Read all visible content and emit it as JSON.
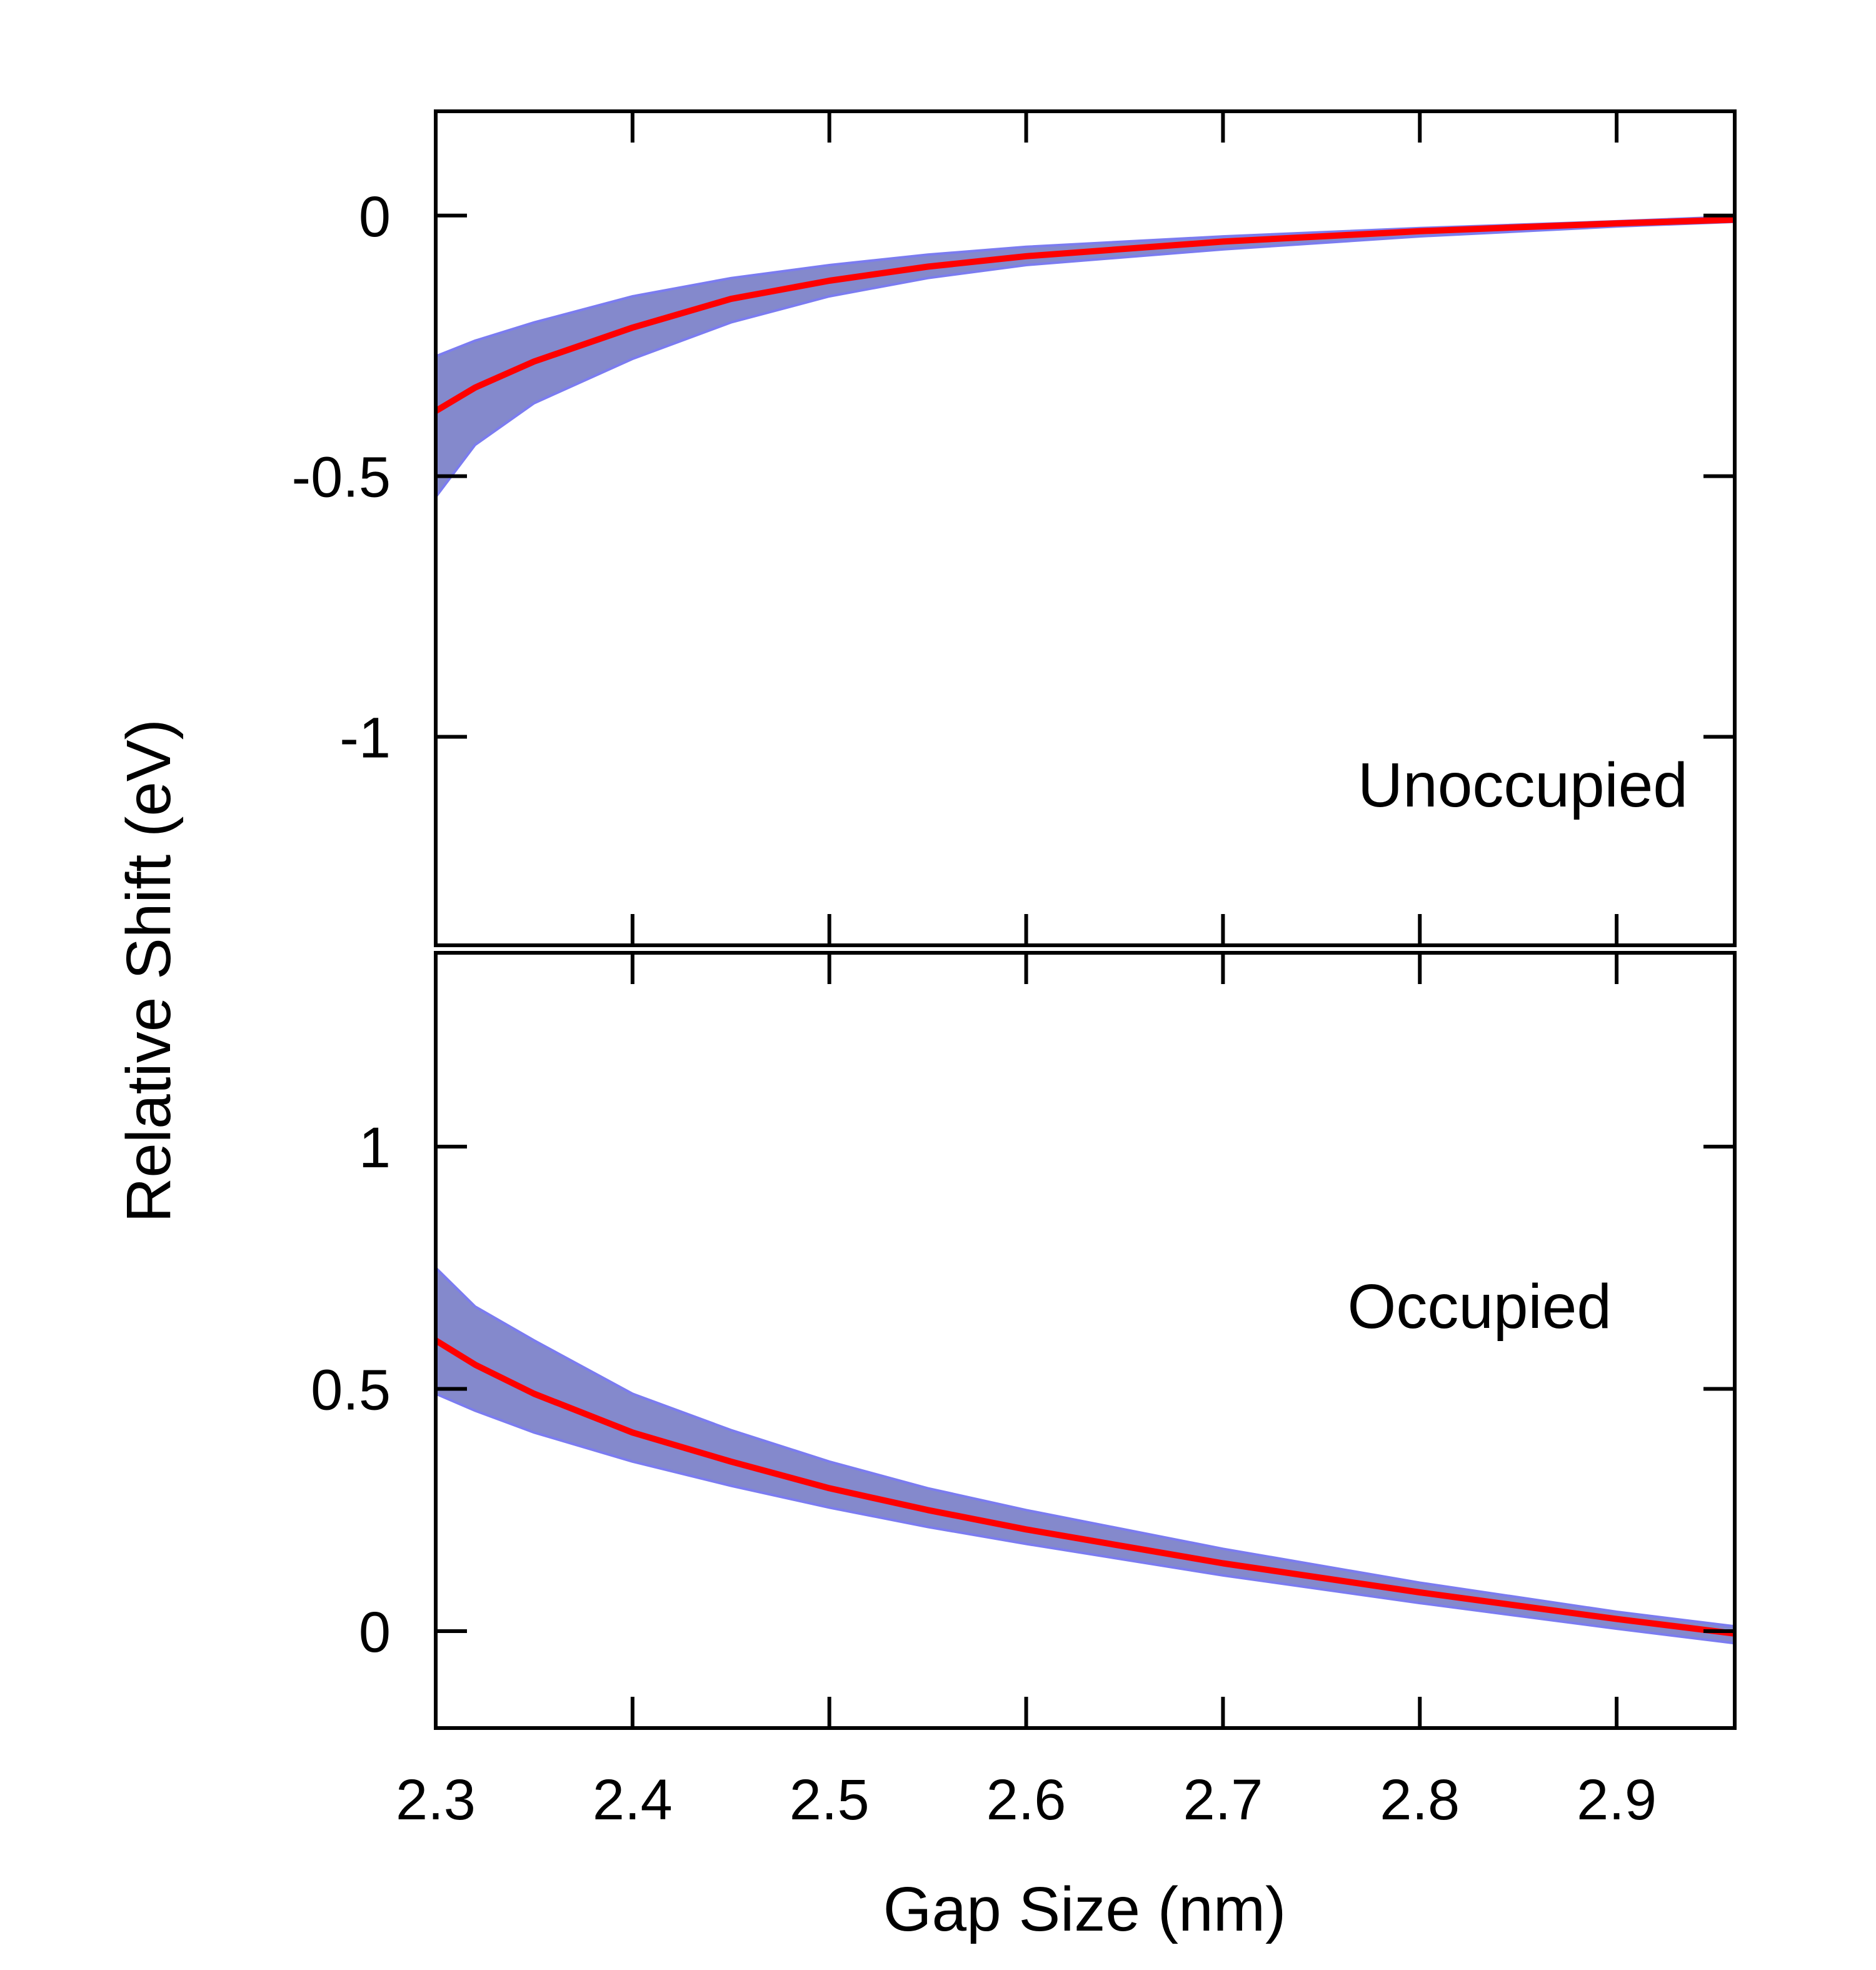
{
  "chart_data": {
    "type": "area",
    "xlabel": "Gap Size (nm)",
    "ylabel": "Relative Shift (eV)",
    "xlim": [
      2.3,
      2.96
    ],
    "x_ticks": [
      "2.3",
      "2.4",
      "2.5",
      "2.6",
      "2.7",
      "2.8",
      "2.9"
    ],
    "grid": false,
    "colors": {
      "line": "#ff0000",
      "band": "#8489cc",
      "band_edge": "#7b7cf0"
    },
    "panels": [
      {
        "label": "Unoccupied",
        "ylim": [
          -1.4,
          0.2
        ],
        "y_ticks": [
          "0",
          "-0.5",
          "-1"
        ],
        "y_tick_values": [
          0,
          -0.5,
          -1
        ],
        "x": [
          2.3,
          2.32,
          2.35,
          2.4,
          2.45,
          2.5,
          2.55,
          2.6,
          2.7,
          2.8,
          2.9,
          2.96
        ],
        "series": [
          {
            "role": "line",
            "values": [
              -0.375,
              -0.33,
              -0.28,
              -0.215,
              -0.16,
              -0.125,
              -0.098,
              -0.078,
              -0.05,
              -0.03,
              -0.015,
              -0.008
            ]
          },
          {
            "role": "band_upper",
            "values": [
              -0.27,
              -0.24,
              -0.205,
              -0.155,
              -0.12,
              -0.095,
              -0.075,
              -0.06,
              -0.04,
              -0.024,
              -0.011,
              -0.002
            ]
          },
          {
            "role": "band_lower",
            "values": [
              -0.54,
              -0.44,
              -0.36,
              -0.275,
              -0.205,
              -0.155,
              -0.12,
              -0.095,
              -0.065,
              -0.04,
              -0.021,
              -0.012
            ]
          }
        ]
      },
      {
        "label": "Occupied",
        "ylim": [
          -0.2,
          1.4
        ],
        "y_ticks": [
          "1",
          "0.5",
          "0"
        ],
        "y_tick_values": [
          1,
          0.5,
          0
        ],
        "x": [
          2.3,
          2.32,
          2.35,
          2.4,
          2.45,
          2.5,
          2.55,
          2.6,
          2.7,
          2.8,
          2.9,
          2.96
        ],
        "series": [
          {
            "role": "line",
            "values": [
              0.6,
              0.55,
              0.49,
              0.41,
              0.35,
              0.295,
              0.25,
              0.21,
              0.14,
              0.08,
              0.025,
              -0.005
            ]
          },
          {
            "role": "band_upper",
            "values": [
              0.75,
              0.67,
              0.6,
              0.49,
              0.415,
              0.35,
              0.295,
              0.25,
              0.17,
              0.1,
              0.04,
              0.01
            ]
          },
          {
            "role": "band_lower",
            "values": [
              0.49,
              0.455,
              0.41,
              0.35,
              0.3,
              0.255,
              0.215,
              0.18,
              0.115,
              0.058,
              0.005,
              -0.025
            ]
          }
        ]
      }
    ]
  }
}
